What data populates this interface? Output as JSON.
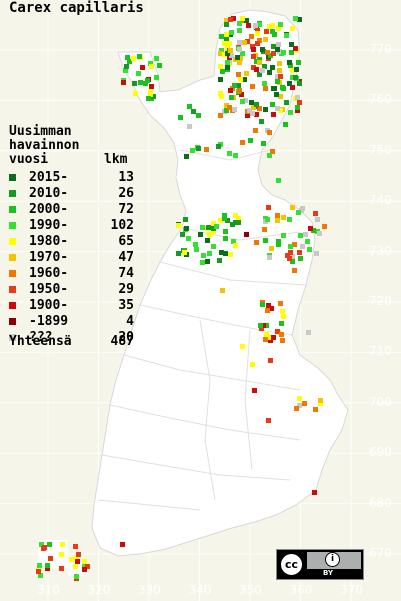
{
  "title": "Carex capillaris",
  "legend": {
    "heading_lines": [
      "Uusimman",
      "havainnon"
    ],
    "year_header": "vuosi",
    "count_header": "lkm",
    "entries": [
      {
        "label": "2015-",
        "count": "13",
        "color": "#0b6e1e"
      },
      {
        "label": "2010-",
        "count": "26",
        "color": "#169a24"
      },
      {
        "label": "2000-",
        "count": "72",
        "color": "#19c21c"
      },
      {
        "label": "1990-",
        "count": "102",
        "color": "#33e033"
      },
      {
        "label": "1980-",
        "count": "65",
        "color": "#ffff00"
      },
      {
        "label": "1970-",
        "count": "47",
        "color": "#f5c400"
      },
      {
        "label": "1960-",
        "count": "74",
        "color": "#f07800"
      },
      {
        "label": "1950-",
        "count": "29",
        "color": "#e83a16"
      },
      {
        "label": "1900-",
        "count": "35",
        "color": "#cc0c0c"
      },
      {
        "label": "-1899",
        "count": "4",
        "color": "#8b0000"
      },
      {
        "label": "???",
        "count": "20",
        "color": "#c8c8c8"
      }
    ],
    "total_label": "Yhteensä",
    "total_count": "487"
  },
  "axis": {
    "y_ticks": [
      "770",
      "760",
      "750",
      "740",
      "730",
      "720",
      "710",
      "700",
      "690",
      "680",
      "670"
    ],
    "x_ticks": [
      "310",
      "320",
      "330",
      "340",
      "350",
      "360",
      "370"
    ]
  },
  "map_colors": {
    "background": "#f5f6e9",
    "land": "#ffffff",
    "borders": "#c8c8c8",
    "grid": "#ffffff"
  },
  "license_badge": {
    "cc_text": "cc",
    "by_symbol": "i",
    "by_text": "BY"
  }
}
